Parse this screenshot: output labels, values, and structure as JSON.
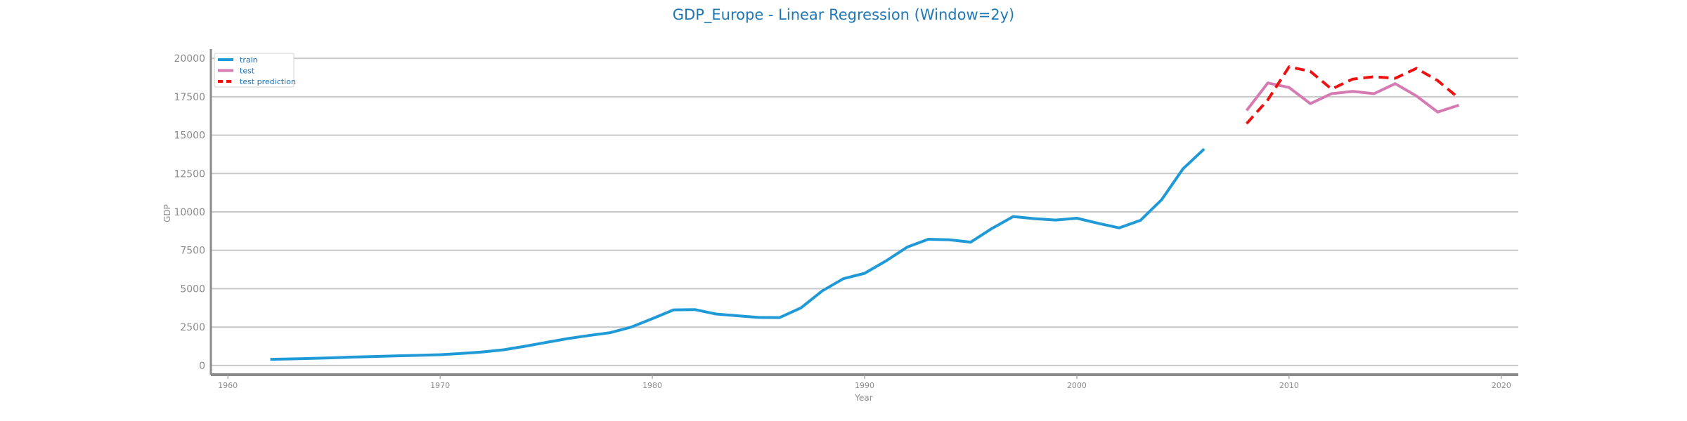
{
  "chart_data": {
    "type": "line",
    "title": "GDP_Europe - Linear Regression (Window=2y)",
    "xlabel": "Year",
    "ylabel": "GDP",
    "xlim": [
      1959.2,
      2020.8
    ],
    "ylim": [
      -600,
      20600
    ],
    "xticks": [
      1960,
      1970,
      1980,
      1990,
      2000,
      2010,
      2020
    ],
    "yticks": [
      0,
      2500,
      5000,
      7500,
      10000,
      12500,
      15000,
      17500,
      20000
    ],
    "grid": "horizontal",
    "legend_position": "top-left",
    "series": [
      {
        "name": "train",
        "color": "#1f9ad6",
        "style": "solid",
        "x": [
          1962,
          1963,
          1964,
          1965,
          1966,
          1967,
          1968,
          1969,
          1970,
          1971,
          1972,
          1973,
          1974,
          1975,
          1976,
          1977,
          1978,
          1979,
          1980,
          1981,
          1982,
          1983,
          1984,
          1985,
          1986,
          1987,
          1988,
          1989,
          1990,
          1991,
          1992,
          1993,
          1994,
          1995,
          1996,
          1997,
          1998,
          1999,
          2000,
          2001,
          2002,
          2003,
          2004,
          2005,
          2006
        ],
        "y": [
          400,
          430,
          460,
          500,
          550,
          590,
          630,
          660,
          700,
          780,
          880,
          1020,
          1250,
          1500,
          1750,
          1950,
          2130,
          2500,
          3050,
          3620,
          3640,
          3350,
          3240,
          3130,
          3120,
          3750,
          4850,
          5650,
          6000,
          6800,
          7700,
          8220,
          8180,
          8030,
          8920,
          9700,
          9560,
          9470,
          9590,
          9260,
          8960,
          9450,
          10800,
          12800,
          14100
        ]
      },
      {
        "name": "test",
        "color": "#d57bb2",
        "style": "solid",
        "x": [
          2008,
          2009,
          2010,
          2011,
          2012,
          2013,
          2014,
          2015,
          2016,
          2017,
          2018
        ],
        "y": [
          16600,
          18400,
          18100,
          17050,
          17700,
          17850,
          17700,
          18350,
          17550,
          16500,
          16950
        ]
      },
      {
        "name": "test prediction",
        "color": "#ee1111",
        "style": "dashed",
        "x": [
          2008,
          2009,
          2010,
          2011,
          2012,
          2013,
          2014,
          2015,
          2016,
          2017,
          2018
        ],
        "y": [
          15750,
          17300,
          19450,
          19150,
          18000,
          18650,
          18800,
          18700,
          19350,
          18550,
          17400
        ]
      }
    ]
  }
}
